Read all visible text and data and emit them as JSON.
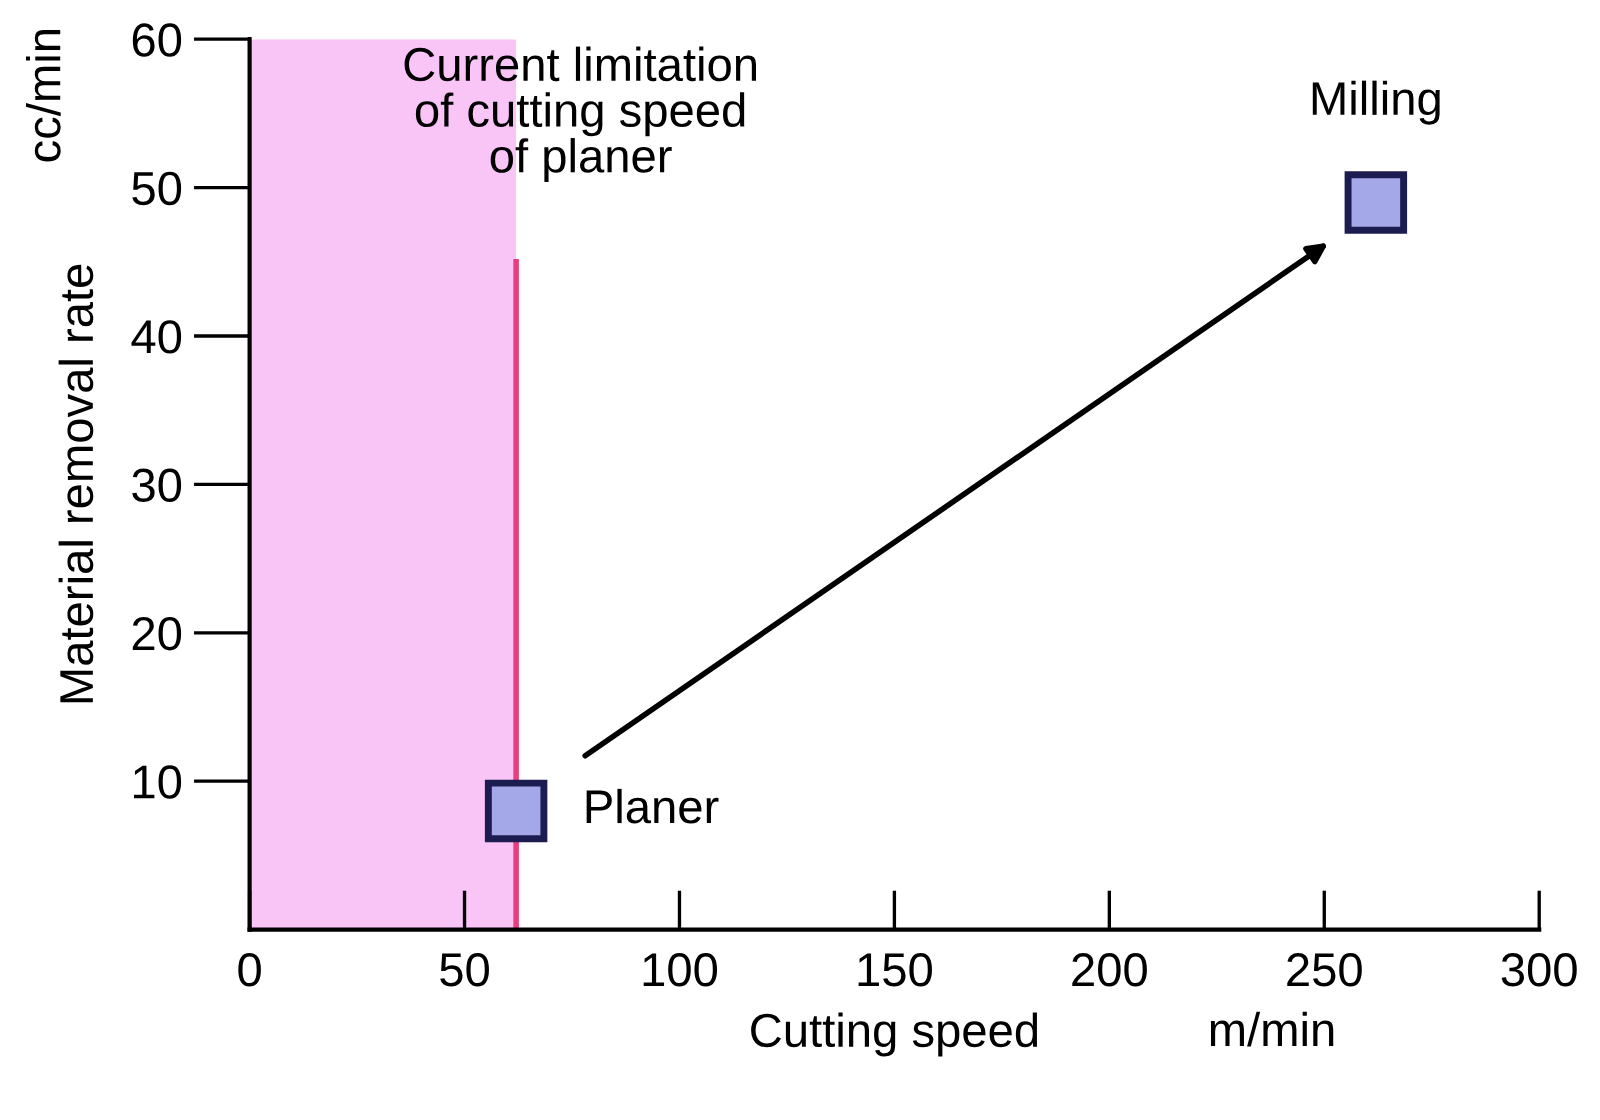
{
  "chart_data": {
    "type": "scatter",
    "xlabel": "Cutting speed",
    "ylabel": "Material removal rate",
    "marker": "square",
    "x": [
      62,
      262
    ],
    "series": [
      {
        "values": [
          8,
          49
        ],
        "color": "#a4a8e8"
      },
      {
        "type": "line",
        "x": [
          62,
          62
        ],
        "values": [
          0,
          45
        ],
        "color": "#e83e7e",
        "marker": "none"
      }
    ],
    "bands": [
      {
        "axis": "x",
        "from": 0,
        "to": 62,
        "color": "#f9c4f6"
      }
    ],
    "annotations": [
      {
        "text": "Planer",
        "x": 62,
        "y": 8
      },
      {
        "text": "Milling",
        "x": 262,
        "y": 49
      },
      "Current limitation\nof cutting speed\nof planer",
      "m/min",
      "cc/min"
    ],
    "xlim": [
      0,
      300
    ],
    "ylim": [
      0,
      60
    ],
    "xticks": [
      0,
      50,
      100,
      150,
      200,
      250,
      300
    ],
    "yticks": [
      10,
      20,
      30,
      40,
      50,
      60
    ],
    "grid": false
  }
}
